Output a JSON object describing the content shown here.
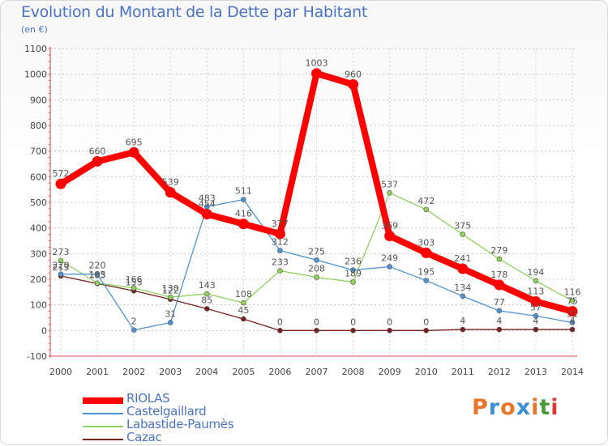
{
  "title": "Evolution du Montant de la Dette par Habitant",
  "subtitle": "(en €)",
  "logo": {
    "text": "Proxiti",
    "colors": [
      "#e8762a",
      "#3a8fd8",
      "#e8762a",
      "#3a8fd8",
      "#e8762a",
      "#4a9c3a",
      "#d93a3a"
    ]
  },
  "chart_data": {
    "type": "line",
    "x": [
      "2000",
      "2001",
      "2002",
      "2003",
      "2004",
      "2005",
      "2006",
      "2007",
      "2008",
      "2009",
      "2010",
      "2011",
      "2012",
      "2013",
      "2014"
    ],
    "ylim": [
      -100,
      1100
    ],
    "yticks": [
      "-100",
      "0",
      "100",
      "200",
      "300",
      "400",
      "500",
      "600",
      "700",
      "800",
      "900",
      "1000",
      "1100"
    ],
    "grid": true,
    "legend_position": "bottom-left",
    "series": [
      {
        "name": "RIOLAS",
        "color": "#ff0000",
        "values": [
          572,
          660,
          695,
          539,
          454,
          416,
          377,
          1003,
          960,
          369,
          303,
          241,
          178,
          113,
          75
        ],
        "labels": [
          "572",
          "660",
          "695",
          "539",
          "454",
          "416",
          "377",
          "1003",
          "960",
          "369",
          "303",
          "241",
          "178",
          "113",
          "75"
        ]
      },
      {
        "name": "Castelgaillard",
        "color": "#4d94d4",
        "values": [
          220,
          220,
          2,
          31,
          483,
          511,
          312,
          275,
          236,
          249,
          195,
          134,
          77,
          57,
          31
        ],
        "labels": [
          "220",
          "220",
          "2",
          "31",
          "483",
          "511",
          "312",
          "275",
          "236",
          "249",
          "195",
          "134",
          "77",
          "57",
          "31"
        ]
      },
      {
        "name": "Labastide-Paumès",
        "color": "#8ed25a",
        "values": [
          273,
          185,
          166,
          130,
          143,
          108,
          233,
          208,
          189,
          537,
          472,
          375,
          279,
          194,
          116
        ],
        "labels": [
          "273",
          "185",
          "166",
          "130",
          "143",
          "108",
          "233",
          "208",
          "189",
          "537",
          "472",
          "375",
          "279",
          "194",
          "116"
        ]
      },
      {
        "name": "Cazac",
        "color": "#7a1f1f",
        "values": [
          213,
          183,
          155,
          122,
          85,
          45,
          0,
          0,
          0,
          0,
          0,
          4,
          4,
          4,
          4
        ],
        "labels": [
          "213",
          "183",
          "155",
          "122",
          "85",
          "45",
          "0",
          "0",
          "0",
          "0",
          "0",
          "4",
          "4",
          "4",
          "4"
        ]
      }
    ]
  }
}
